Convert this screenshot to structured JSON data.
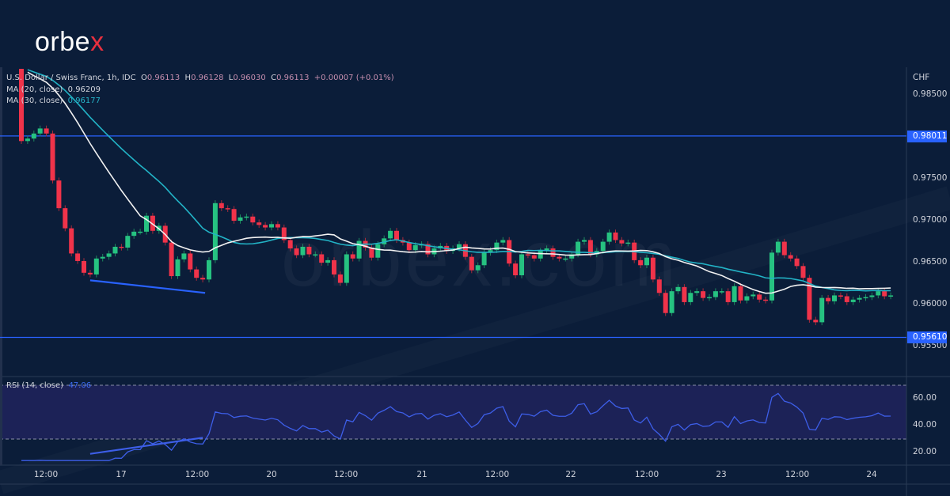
{
  "brand": {
    "logo_text": "orbe",
    "logo_x": "x",
    "watermark": "orbex.com"
  },
  "legend": {
    "symbol": "U.S. Dollar / Swiss Franc, 1h, IDC",
    "o_label": "O",
    "o": "0.96113",
    "h_label": "H",
    "h": "0.96128",
    "l_label": "L",
    "l": "0.96030",
    "c_label": "C",
    "c": "0.96113",
    "change": "+0.00007 (+0.01%)",
    "ma20_label": "MA (20, close)",
    "ma20_value": "0.96209",
    "ma30_label": "MA (30, close)",
    "ma30_value": "0.96177",
    "rsi_label": "RSI (14, close)",
    "rsi_value": "47.06"
  },
  "colors": {
    "up": "#26c281",
    "down": "#f0334a",
    "ma20": "#f2f2f2",
    "ma30": "#22b3c6",
    "level": "#2962ff",
    "rsi": "#3d5ee8",
    "rsi_band": "#1c2257",
    "background": "#0b1d39"
  },
  "chart_data": [
    {
      "type": "candlestick",
      "currency_label": "CHF",
      "ylim": [
        0.9525,
        0.9885
      ],
      "yticks": [
        "0.98500",
        "0.97500",
        "0.97000",
        "0.96500",
        "0.96000",
        "0.95500"
      ],
      "xticks": [
        "12:00",
        "17",
        "12:00",
        "20",
        "12:00",
        "21",
        "12:00",
        "22",
        "12:00",
        "23",
        "12:00",
        "24"
      ],
      "first_open": 0.9886,
      "closes": [
        0.9795,
        0.9798,
        0.9804,
        0.981,
        0.9804,
        0.9748,
        0.9715,
        0.9691,
        0.9661,
        0.9652,
        0.9638,
        0.9636,
        0.9655,
        0.9657,
        0.9661,
        0.9669,
        0.9668,
        0.9682,
        0.9687,
        0.9687,
        0.9706,
        0.9688,
        0.9694,
        0.9674,
        0.9634,
        0.9654,
        0.9661,
        0.9642,
        0.9632,
        0.963,
        0.9653,
        0.9721,
        0.9715,
        0.9714,
        0.97,
        0.9704,
        0.9705,
        0.9698,
        0.9695,
        0.9692,
        0.9696,
        0.9692,
        0.9677,
        0.9667,
        0.9659,
        0.9669,
        0.966,
        0.966,
        0.965,
        0.9653,
        0.9636,
        0.9626,
        0.966,
        0.9655,
        0.9676,
        0.9668,
        0.9656,
        0.9672,
        0.9679,
        0.9688,
        0.9677,
        0.9674,
        0.9665,
        0.9671,
        0.9672,
        0.966,
        0.9667,
        0.967,
        0.9664,
        0.9667,
        0.9672,
        0.9657,
        0.9641,
        0.9647,
        0.9662,
        0.9665,
        0.9674,
        0.9677,
        0.9649,
        0.9635,
        0.966,
        0.9659,
        0.9655,
        0.9664,
        0.9667,
        0.9657,
        0.9655,
        0.9655,
        0.966,
        0.9675,
        0.9677,
        0.966,
        0.9664,
        0.9675,
        0.9686,
        0.9677,
        0.9673,
        0.9674,
        0.9653,
        0.9647,
        0.9656,
        0.963,
        0.9614,
        0.959,
        0.9616,
        0.9621,
        0.9603,
        0.9614,
        0.9616,
        0.9608,
        0.9609,
        0.9616,
        0.9616,
        0.9603,
        0.9622,
        0.9605,
        0.961,
        0.9612,
        0.9606,
        0.9605,
        0.9662,
        0.9675,
        0.9659,
        0.9655,
        0.9646,
        0.9632,
        0.9582,
        0.9579,
        0.9608,
        0.9604,
        0.9611,
        0.961,
        0.9603,
        0.9606,
        0.9608,
        0.9609,
        0.9611,
        0.9616,
        0.961,
        0.9611
      ],
      "levels": [
        {
          "price": 0.98011,
          "label": "0.98011"
        },
        {
          "price": 0.9561,
          "label": "0.95610"
        }
      ],
      "support_trendline": {
        "from_price": 0.9629,
        "to_price": 0.9614
      },
      "moving_averages": [
        {
          "name": "MA (20, close)",
          "period": 20
        },
        {
          "name": "MA (30, close)",
          "period": 30
        }
      ]
    },
    {
      "type": "line",
      "name": "RSI (14, close)",
      "ylim": [
        12,
        75
      ],
      "yticks": [
        "60.00",
        "40.00",
        "20.00"
      ],
      "band": [
        30,
        70
      ],
      "current": 47.06,
      "divergence_trendline": {
        "from_value": 19,
        "to_value": 31
      }
    }
  ]
}
